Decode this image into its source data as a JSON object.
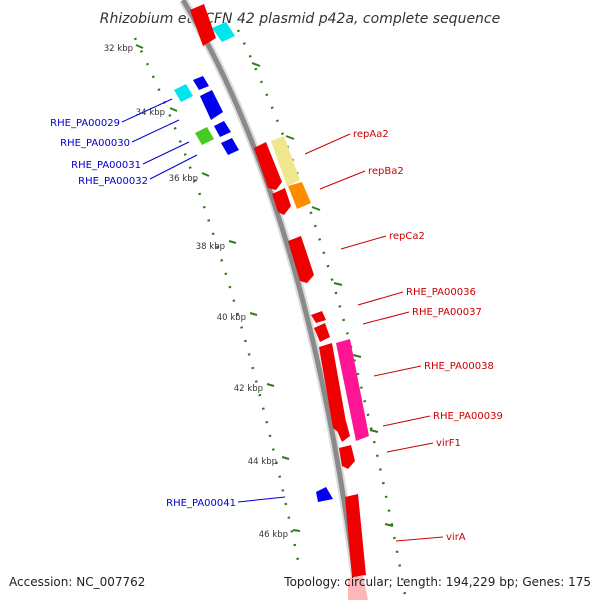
{
  "title": "Rhizobium etli CFN 42 plasmid p42a, complete sequence",
  "footer": {
    "accession": "Accession: NC_007762",
    "summary": "Topology: circular; Length: 194,229 bp; Genes: 175"
  },
  "colors": {
    "backbone": "#8a8a8a",
    "tick": "#2e7d1a",
    "left_label": "#0000cc",
    "right_label": "#cc0000"
  },
  "tick_labels": [
    "32 kbp",
    "34 kbp",
    "36 kbp",
    "38 kbp",
    "40 kbp",
    "42 kbp",
    "44 kbp",
    "46 kbp"
  ],
  "left_genes": [
    {
      "label": "RHE_PA00029",
      "color": "#00e5ee"
    },
    {
      "label": "RHE_PA00030",
      "color": "#0000ee"
    },
    {
      "label": "RHE_PA00031",
      "color": "#44cc22"
    },
    {
      "label": "RHE_PA00032",
      "color": "#0000ee"
    },
    {
      "label": "RHE_PA00041",
      "color": "#0000ee"
    }
  ],
  "right_genes": [
    {
      "label": "repAa2",
      "color": "#ee0000"
    },
    {
      "label": "repBa2",
      "color": "#ee0000"
    },
    {
      "label": "repCa2",
      "color": "#ee0000"
    },
    {
      "label": "RHE_PA00036",
      "color": "#ee0000"
    },
    {
      "label": "RHE_PA00037",
      "color": "#ee0000"
    },
    {
      "label": "RHE_PA00038",
      "color": "#ee0000"
    },
    {
      "label": "RHE_PA00039",
      "color": "#ee0000"
    },
    {
      "label": "virF1",
      "color": "#ee0000"
    },
    {
      "label": "virA",
      "color": "#ee0000"
    }
  ]
}
